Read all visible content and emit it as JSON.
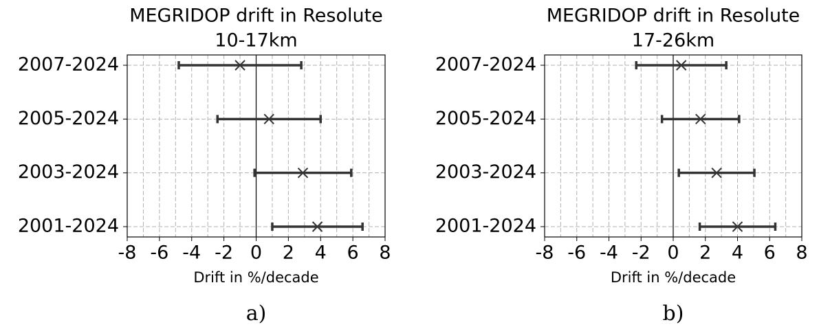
{
  "chart_data": [
    {
      "type": "errorbar",
      "title": "MEGRIDOP drift in Resolute",
      "subtitle": "10-17km",
      "panel_label": "a)",
      "xlabel": "Drift in %/decade",
      "categories": [
        "2007-2024",
        "2005-2024",
        "2003-2024",
        "2001-2024"
      ],
      "values": [
        -1.0,
        0.8,
        2.9,
        3.8
      ],
      "errors": [
        3.8,
        3.2,
        3.0,
        2.8
      ],
      "color": "#333333",
      "xlim": [
        -8,
        8
      ],
      "xticks": [
        -8,
        -6,
        -4,
        -2,
        0,
        2,
        4,
        6,
        8
      ],
      "grid": true
    },
    {
      "type": "errorbar",
      "title": "MEGRIDOP drift in Resolute",
      "subtitle": "17-26km",
      "panel_label": "b)",
      "xlabel": "Drift in %/decade",
      "categories": [
        "2007-2024",
        "2005-2024",
        "2003-2024",
        "2001-2024"
      ],
      "values": [
        0.5,
        1.7,
        2.7,
        4.0
      ],
      "errors": [
        2.8,
        2.4,
        2.35,
        2.35
      ],
      "color": "#333333",
      "xlim": [
        -8,
        8
      ],
      "xticks": [
        -8,
        -6,
        -4,
        -2,
        0,
        2,
        4,
        6,
        8
      ],
      "grid": true
    }
  ]
}
